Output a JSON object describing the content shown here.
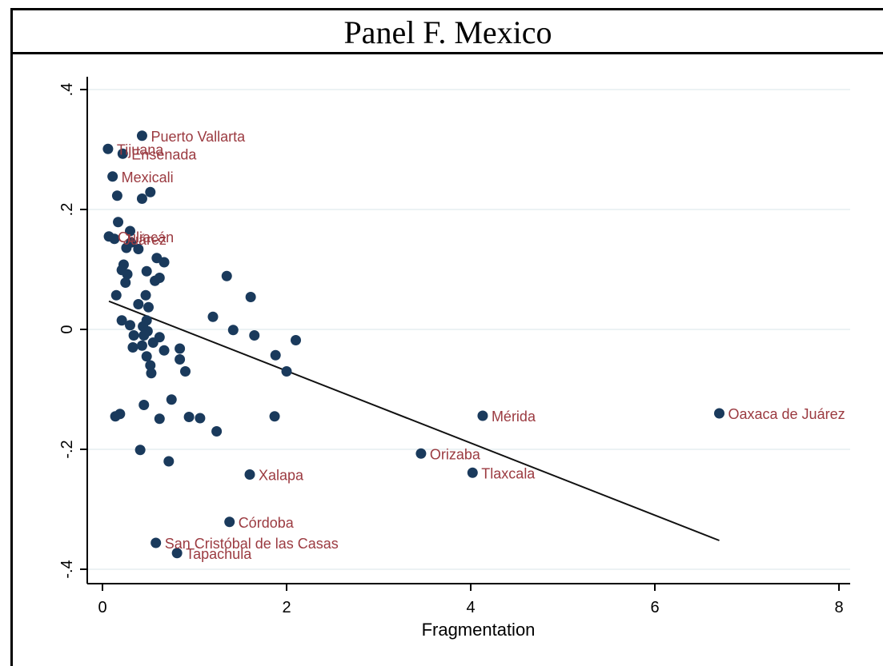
{
  "panel_title": "Panel F. Mexico",
  "colors": {
    "point": "#1a3a5c",
    "label": "#9b3a40",
    "fit_line": "#111111",
    "grid": "#e6eef0"
  },
  "chart_data": {
    "type": "scatter",
    "title": "Panel F. Mexico",
    "xlabel": "Fragmentation",
    "ylabel": "",
    "xlim": [
      0,
      8
    ],
    "ylim": [
      -0.4,
      0.4
    ],
    "xticks": [
      0,
      2,
      4,
      6,
      8
    ],
    "xtick_labels": [
      "0",
      "2",
      "4",
      "6",
      "8"
    ],
    "yticks": [
      -0.4,
      -0.2,
      0,
      0.2,
      0.4
    ],
    "ytick_labels": [
      "-.4",
      "-.2",
      "0",
      ".2",
      ".4"
    ],
    "grid": "horizontal",
    "fit_line": {
      "x": [
        0.07,
        6.7
      ],
      "y": [
        0.047,
        -0.352
      ]
    },
    "points": [
      {
        "x": 0.43,
        "y": 0.323,
        "label": "Puerto Vallarta"
      },
      {
        "x": 0.06,
        "y": 0.301,
        "label": "Tijuana"
      },
      {
        "x": 0.22,
        "y": 0.293,
        "label": "Ensenada"
      },
      {
        "x": 0.11,
        "y": 0.255,
        "label": "Mexicali"
      },
      {
        "x": 0.52,
        "y": 0.229,
        "label": ""
      },
      {
        "x": 0.16,
        "y": 0.223,
        "label": ""
      },
      {
        "x": 0.43,
        "y": 0.218,
        "label": ""
      },
      {
        "x": 0.17,
        "y": 0.179,
        "label": ""
      },
      {
        "x": 0.3,
        "y": 0.164,
        "label": ""
      },
      {
        "x": 0.07,
        "y": 0.155,
        "label": "Culiacán"
      },
      {
        "x": 0.13,
        "y": 0.151,
        "label": "Juárez"
      },
      {
        "x": 0.31,
        "y": 0.145,
        "label": ""
      },
      {
        "x": 0.26,
        "y": 0.136,
        "label": ""
      },
      {
        "x": 0.39,
        "y": 0.134,
        "label": ""
      },
      {
        "x": 0.59,
        "y": 0.119,
        "label": ""
      },
      {
        "x": 0.67,
        "y": 0.112,
        "label": ""
      },
      {
        "x": 0.23,
        "y": 0.108,
        "label": ""
      },
      {
        "x": 0.21,
        "y": 0.099,
        "label": ""
      },
      {
        "x": 0.48,
        "y": 0.097,
        "label": ""
      },
      {
        "x": 0.27,
        "y": 0.092,
        "label": ""
      },
      {
        "x": 0.62,
        "y": 0.086,
        "label": ""
      },
      {
        "x": 0.57,
        "y": 0.081,
        "label": ""
      },
      {
        "x": 0.25,
        "y": 0.078,
        "label": ""
      },
      {
        "x": 0.15,
        "y": 0.057,
        "label": ""
      },
      {
        "x": 0.47,
        "y": 0.057,
        "label": ""
      },
      {
        "x": 0.39,
        "y": 0.042,
        "label": ""
      },
      {
        "x": 0.5,
        "y": 0.037,
        "label": ""
      },
      {
        "x": 0.21,
        "y": 0.015,
        "label": ""
      },
      {
        "x": 0.48,
        "y": 0.015,
        "label": ""
      },
      {
        "x": 0.3,
        "y": 0.007,
        "label": ""
      },
      {
        "x": 0.44,
        "y": 0.005,
        "label": ""
      },
      {
        "x": 0.49,
        "y": -0.003,
        "label": ""
      },
      {
        "x": 0.34,
        "y": -0.01,
        "label": ""
      },
      {
        "x": 0.45,
        "y": -0.01,
        "label": ""
      },
      {
        "x": 0.62,
        "y": -0.013,
        "label": ""
      },
      {
        "x": 0.55,
        "y": -0.022,
        "label": ""
      },
      {
        "x": 0.43,
        "y": -0.027,
        "label": ""
      },
      {
        "x": 0.33,
        "y": -0.03,
        "label": ""
      },
      {
        "x": 0.84,
        "y": -0.032,
        "label": ""
      },
      {
        "x": 0.67,
        "y": -0.035,
        "label": ""
      },
      {
        "x": 0.48,
        "y": -0.045,
        "label": ""
      },
      {
        "x": 0.84,
        "y": -0.05,
        "label": ""
      },
      {
        "x": 0.52,
        "y": -0.06,
        "label": ""
      },
      {
        "x": 0.9,
        "y": -0.07,
        "label": ""
      },
      {
        "x": 0.53,
        "y": -0.073,
        "label": ""
      },
      {
        "x": 1.35,
        "y": 0.089,
        "label": ""
      },
      {
        "x": 1.61,
        "y": 0.054,
        "label": ""
      },
      {
        "x": 1.2,
        "y": 0.021,
        "label": ""
      },
      {
        "x": 1.42,
        "y": -0.001,
        "label": ""
      },
      {
        "x": 1.65,
        "y": -0.01,
        "label": ""
      },
      {
        "x": 2.1,
        "y": -0.018,
        "label": ""
      },
      {
        "x": 1.88,
        "y": -0.043,
        "label": ""
      },
      {
        "x": 2.0,
        "y": -0.07,
        "label": ""
      },
      {
        "x": 0.45,
        "y": -0.126,
        "label": ""
      },
      {
        "x": 0.75,
        "y": -0.117,
        "label": ""
      },
      {
        "x": 0.19,
        "y": -0.141,
        "label": ""
      },
      {
        "x": 0.14,
        "y": -0.145,
        "label": ""
      },
      {
        "x": 0.94,
        "y": -0.146,
        "label": ""
      },
      {
        "x": 1.06,
        "y": -0.148,
        "label": ""
      },
      {
        "x": 1.87,
        "y": -0.145,
        "label": ""
      },
      {
        "x": 0.62,
        "y": -0.149,
        "label": ""
      },
      {
        "x": 1.24,
        "y": -0.17,
        "label": ""
      },
      {
        "x": 0.41,
        "y": -0.201,
        "label": ""
      },
      {
        "x": 0.72,
        "y": -0.22,
        "label": ""
      },
      {
        "x": 4.13,
        "y": -0.144,
        "label": "Mérida"
      },
      {
        "x": 6.7,
        "y": -0.14,
        "label": "Oaxaca de Juárez"
      },
      {
        "x": 3.46,
        "y": -0.207,
        "label": "Orizaba"
      },
      {
        "x": 4.02,
        "y": -0.239,
        "label": "Tlaxcala"
      },
      {
        "x": 1.6,
        "y": -0.242,
        "label": "Xalapa"
      },
      {
        "x": 1.38,
        "y": -0.321,
        "label": "Córdoba"
      },
      {
        "x": 0.58,
        "y": -0.356,
        "label": "San Cristóbal de las Casas"
      },
      {
        "x": 0.81,
        "y": -0.373,
        "label": "Tapachula"
      }
    ]
  }
}
